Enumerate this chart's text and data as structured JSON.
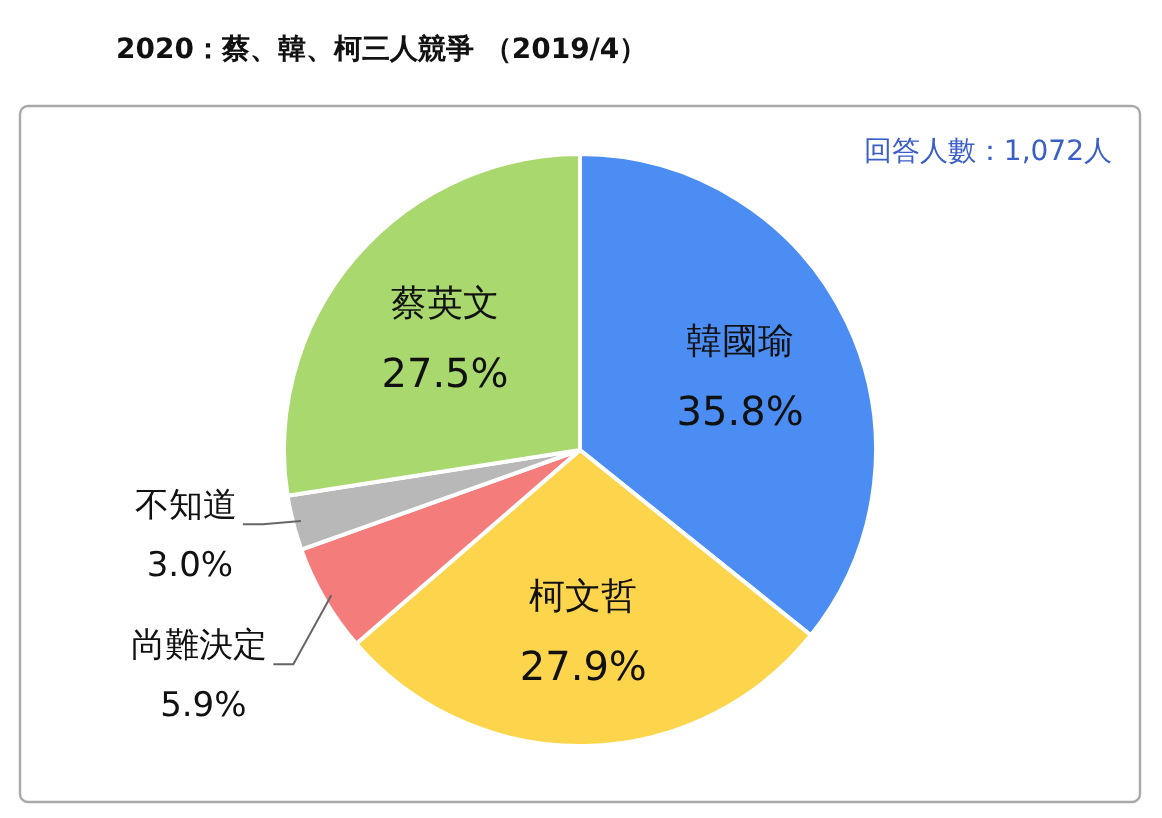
{
  "chart_data": {
    "type": "pie",
    "title": "2020：蔡、韓、柯三人競爭 （2019/4）",
    "categories": [
      "韓國瑜",
      "柯文哲",
      "尚難決定",
      "不知道",
      "蔡英文"
    ],
    "values": [
      35.8,
      27.9,
      5.9,
      3.0,
      27.5
    ],
    "value_labels": [
      "35.8%",
      "27.9%",
      "5.9%",
      "3.0%",
      "27.5%"
    ],
    "colors": [
      "#4b8df2",
      "#fdd54c",
      "#f47c7a",
      "#b8b8b8",
      "#a8d86e"
    ],
    "annotations": [
      "回答人數：1,072人"
    ]
  }
}
